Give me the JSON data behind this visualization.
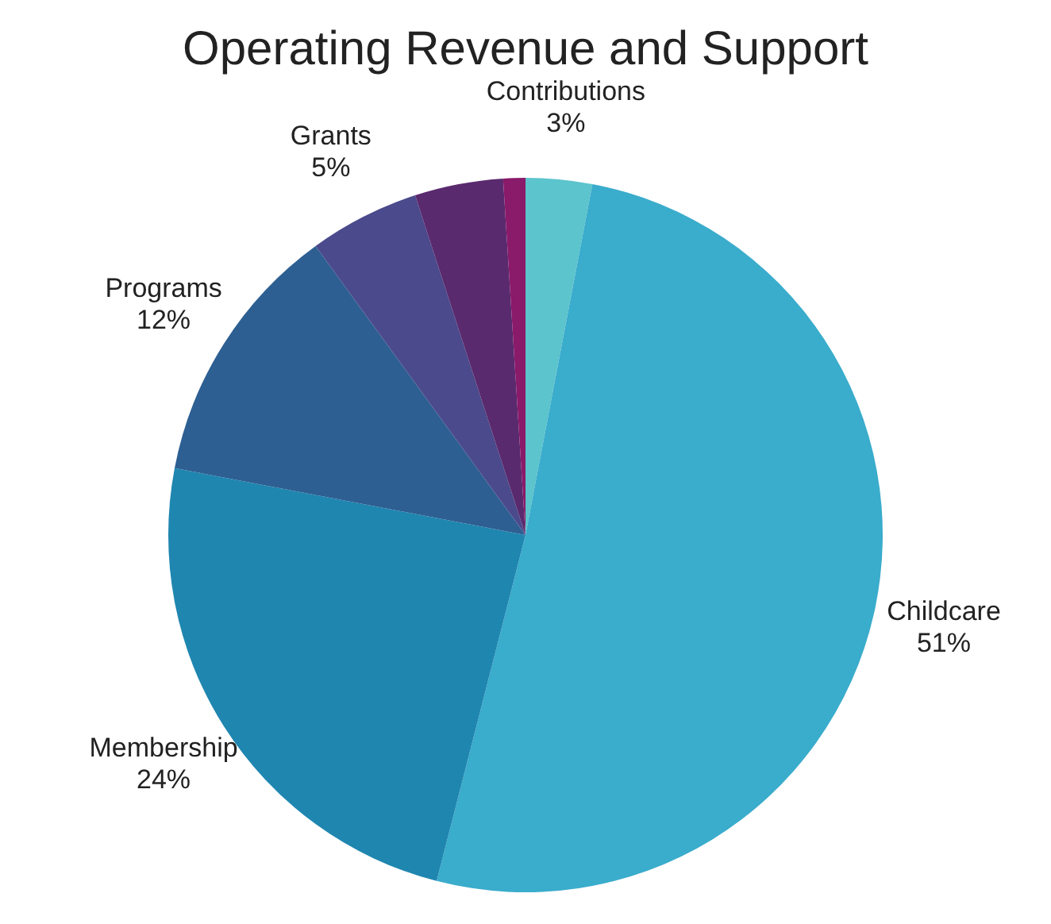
{
  "chart_data": {
    "type": "pie",
    "title": "Operating Revenue and Support",
    "categories": [
      "Contributions",
      "Childcare",
      "Membership",
      "Programs",
      "Grants",
      null,
      null
    ],
    "values": [
      3,
      51,
      24,
      12,
      5,
      4,
      1
    ],
    "value_labels": [
      "3%",
      "51%",
      "24%",
      "12%",
      "5%",
      null,
      null
    ],
    "colors": [
      "#5cc4cc",
      "#3aaccc",
      "#1f86b0",
      "#2d5f92",
      "#4a4a8c",
      "#5a2a6e",
      "#8a1a6a"
    ],
    "legend": false
  }
}
